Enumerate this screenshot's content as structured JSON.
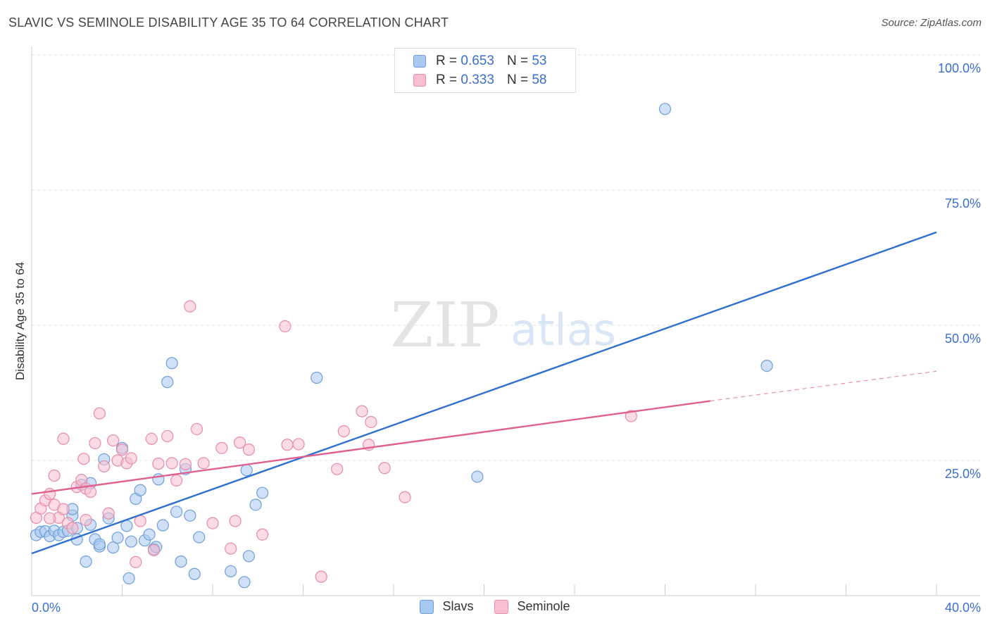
{
  "title": "SLAVIC VS SEMINOLE DISABILITY AGE 35 TO 64 CORRELATION CHART",
  "source": "Source: ZipAtlas.com",
  "legend": {
    "rows": [
      {
        "r_label": "R =",
        "r_value": "0.653",
        "n_label": "N =",
        "n_value": "53"
      },
      {
        "r_label": "R =",
        "r_value": "0.333",
        "n_label": "N =",
        "n_value": "58"
      }
    ]
  },
  "bottom_legend": [
    "Slavs",
    "Seminole"
  ],
  "watermark": {
    "zip": "ZIP",
    "atlas": "atlas"
  },
  "colors": {
    "slavs_fill": "#a9c8f0",
    "slavs_stroke": "#6e9fd8",
    "slavs_line": "#2f6fd0",
    "seminole_fill": "#f7bfd0",
    "seminole_stroke": "#e88aa8",
    "seminole_line": "#e0608e",
    "tick_label": "#3a6fd0"
  },
  "chart_data": {
    "type": "scatter",
    "title": "SLAVIC VS SEMINOLE DISABILITY AGE 35 TO 64 CORRELATION CHART",
    "xlabel": "",
    "ylabel": "Disability Age 35 to 64",
    "xlim": [
      0,
      40
    ],
    "ylim": [
      0,
      100
    ],
    "x_tick_labels": [
      "0.0%",
      "40.0%"
    ],
    "y_ticks": [
      25,
      50,
      75,
      100
    ],
    "y_tick_labels": [
      "25.0%",
      "50.0%",
      "75.0%",
      "100.0%"
    ],
    "series": [
      {
        "name": "Slavs",
        "r": 0.653,
        "n": 53,
        "trend": {
          "x0": 0,
          "y0": 7.8,
          "x1": 40,
          "y1": 67.2
        },
        "points": [
          [
            0.2,
            11.2
          ],
          [
            0.4,
            11.8
          ],
          [
            0.6,
            11.9
          ],
          [
            0.8,
            11.0
          ],
          [
            1.0,
            12.0
          ],
          [
            1.2,
            11.2
          ],
          [
            1.4,
            11.8
          ],
          [
            1.6,
            12.0
          ],
          [
            1.8,
            14.8
          ],
          [
            2.0,
            10.4
          ],
          [
            2.2,
            20.5
          ],
          [
            2.4,
            6.3
          ],
          [
            2.6,
            13.1
          ],
          [
            2.8,
            10.4
          ],
          [
            3.0,
            9.1
          ],
          [
            3.2,
            25.2
          ],
          [
            3.4,
            14.3
          ],
          [
            3.6,
            8.9
          ],
          [
            3.8,
            10.7
          ],
          [
            4.0,
            27.3
          ],
          [
            4.2,
            12.9
          ],
          [
            4.4,
            10.0
          ],
          [
            4.6,
            17.9
          ],
          [
            4.8,
            19.5
          ],
          [
            5.0,
            10.2
          ],
          [
            5.2,
            11.3
          ],
          [
            5.4,
            8.6
          ],
          [
            5.6,
            21.5
          ],
          [
            5.8,
            13.0
          ],
          [
            6.0,
            39.5
          ],
          [
            6.2,
            43.0
          ],
          [
            6.4,
            15.5
          ],
          [
            6.6,
            6.3
          ],
          [
            6.8,
            23.4
          ],
          [
            7.0,
            14.8
          ],
          [
            7.2,
            4.0
          ],
          [
            7.4,
            10.8
          ],
          [
            8.8,
            4.5
          ],
          [
            9.4,
            2.5
          ],
          [
            9.5,
            23.2
          ],
          [
            9.6,
            7.3
          ],
          [
            9.9,
            16.8
          ],
          [
            10.2,
            19.0
          ],
          [
            12.6,
            40.3
          ],
          [
            4.3,
            3.2
          ],
          [
            1.8,
            16.0
          ],
          [
            5.5,
            9.0
          ],
          [
            3.0,
            9.5
          ],
          [
            2.6,
            20.8
          ],
          [
            2.0,
            12.5
          ],
          [
            19.7,
            22.0
          ],
          [
            28.0,
            90.0
          ],
          [
            32.5,
            42.5
          ]
        ]
      },
      {
        "name": "Seminole",
        "r": 0.333,
        "n": 58,
        "trend": {
          "x0": 0,
          "y0": 18.8,
          "x1": 30.0,
          "y1": 36.0
        },
        "trend_dashed": {
          "x0": 30.0,
          "y0": 36.0,
          "x1": 40,
          "y1": 41.5
        },
        "points": [
          [
            0.2,
            14.4
          ],
          [
            0.4,
            16.1
          ],
          [
            0.6,
            17.6
          ],
          [
            0.8,
            18.8
          ],
          [
            1.0,
            16.8
          ],
          [
            1.2,
            14.4
          ],
          [
            1.4,
            16.0
          ],
          [
            1.6,
            13.4
          ],
          [
            1.8,
            12.5
          ],
          [
            2.0,
            20.1
          ],
          [
            2.2,
            21.4
          ],
          [
            2.4,
            19.8
          ],
          [
            2.6,
            19.2
          ],
          [
            2.8,
            28.2
          ],
          [
            3.0,
            33.7
          ],
          [
            3.2,
            23.9
          ],
          [
            3.4,
            15.2
          ],
          [
            3.6,
            28.7
          ],
          [
            3.8,
            25.0
          ],
          [
            4.0,
            27.0
          ],
          [
            4.2,
            24.5
          ],
          [
            4.4,
            25.4
          ],
          [
            4.6,
            6.2
          ],
          [
            4.8,
            13.8
          ],
          [
            5.4,
            8.4
          ],
          [
            5.6,
            24.4
          ],
          [
            6.0,
            29.5
          ],
          [
            6.4,
            21.3
          ],
          [
            6.8,
            24.3
          ],
          [
            7.0,
            53.5
          ],
          [
            7.3,
            30.8
          ],
          [
            7.6,
            24.5
          ],
          [
            8.0,
            13.4
          ],
          [
            8.4,
            27.3
          ],
          [
            8.8,
            8.7
          ],
          [
            9.0,
            13.8
          ],
          [
            9.2,
            28.3
          ],
          [
            9.6,
            27.0
          ],
          [
            10.2,
            11.3
          ],
          [
            11.2,
            49.8
          ],
          [
            11.3,
            27.9
          ],
          [
            11.8,
            28.0
          ],
          [
            12.8,
            3.5
          ],
          [
            13.5,
            23.4
          ],
          [
            13.8,
            30.4
          ],
          [
            14.6,
            34.1
          ],
          [
            14.9,
            27.9
          ],
          [
            15.0,
            32.1
          ],
          [
            15.6,
            23.6
          ],
          [
            16.5,
            18.2
          ],
          [
            1.4,
            29.0
          ],
          [
            2.3,
            25.3
          ],
          [
            0.8,
            14.3
          ],
          [
            2.4,
            14.0
          ],
          [
            5.3,
            29.0
          ],
          [
            6.2,
            24.5
          ],
          [
            1.0,
            22.2
          ],
          [
            26.5,
            33.2
          ]
        ]
      }
    ]
  }
}
